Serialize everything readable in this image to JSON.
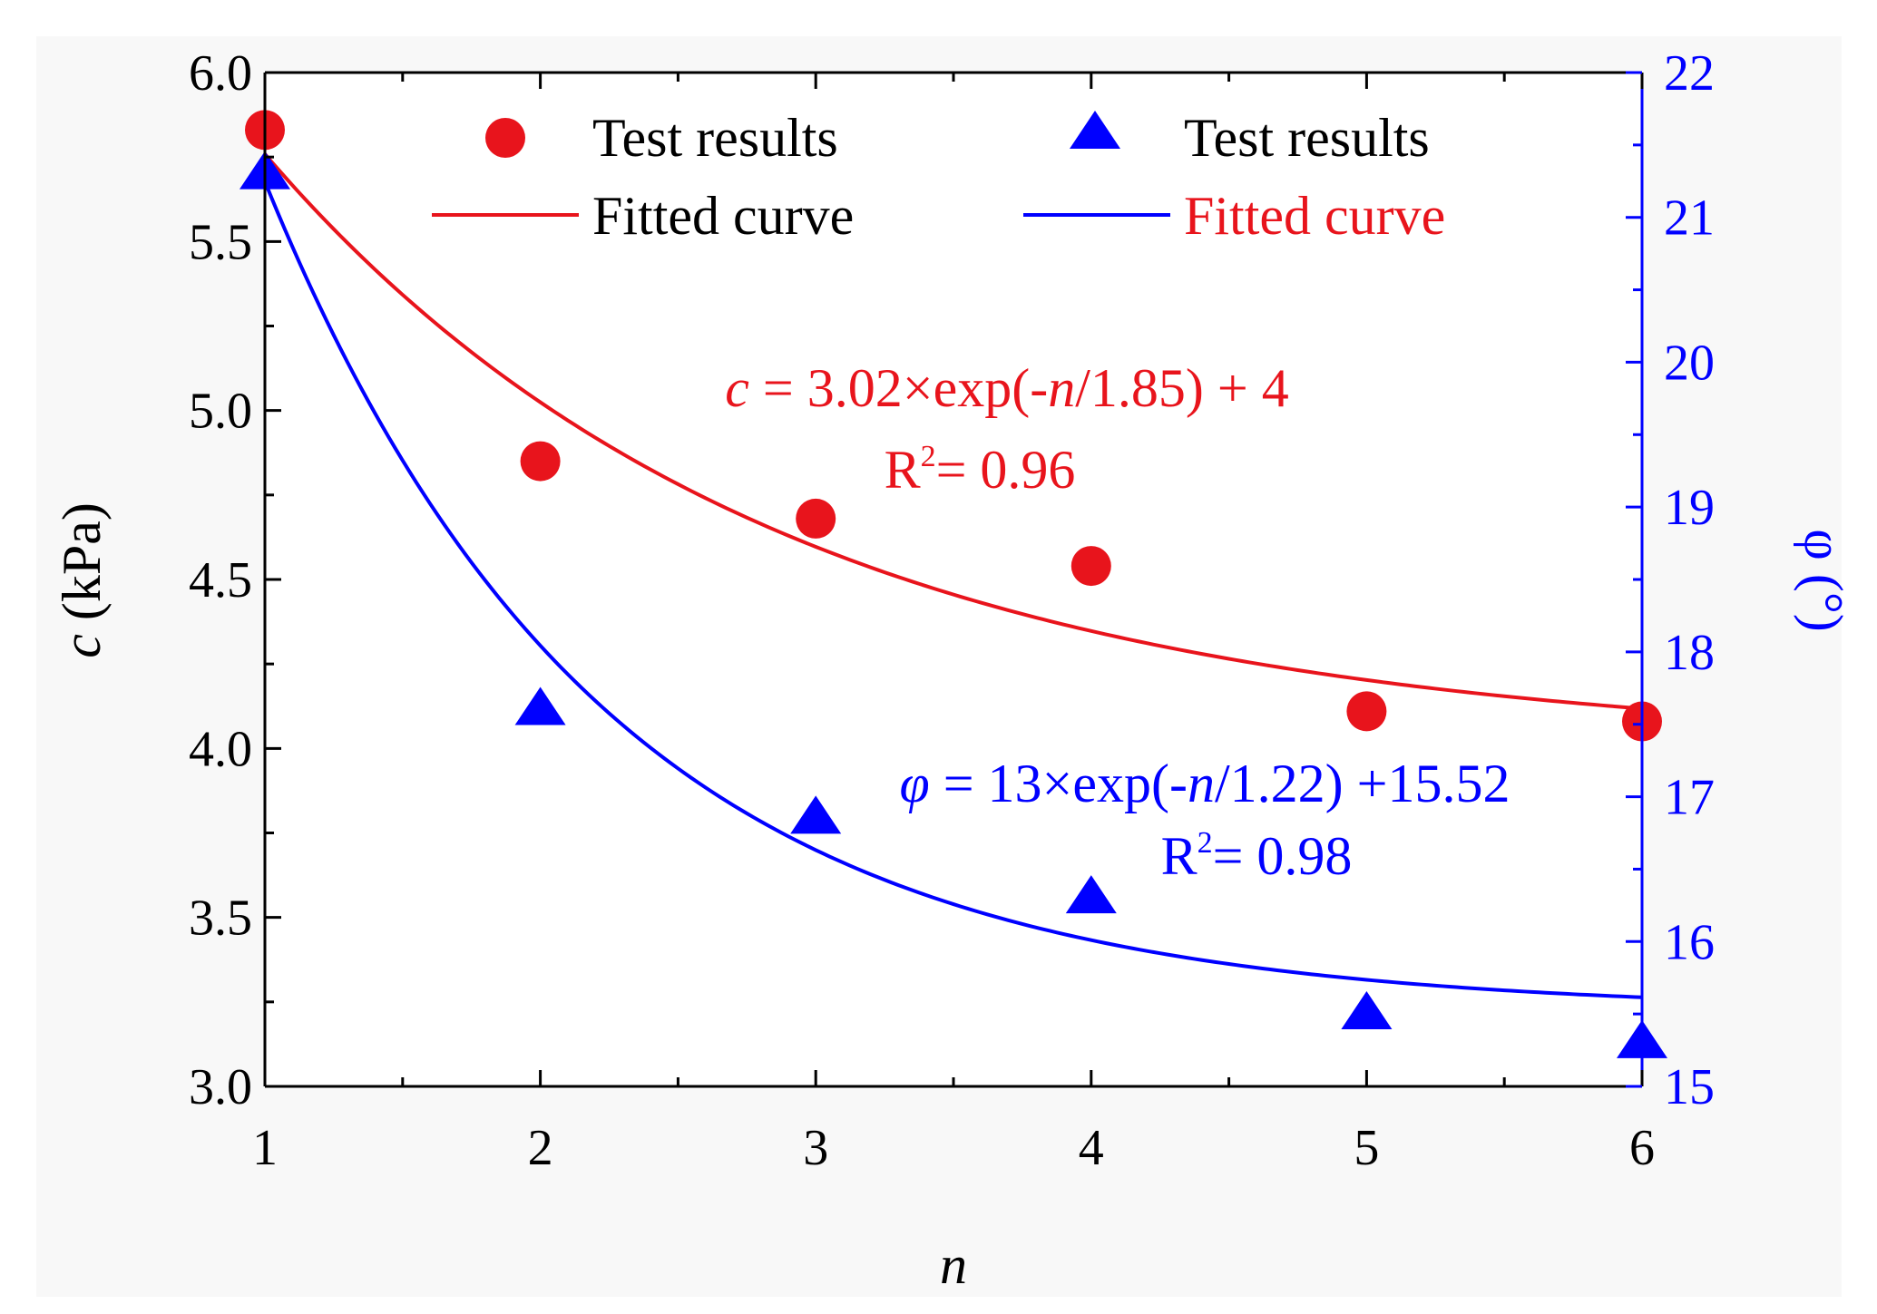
{
  "chart_data": {
    "type": "scatter",
    "x": [
      1,
      2,
      3,
      4,
      5,
      6
    ],
    "xlim": [
      1,
      6
    ],
    "xticks": [
      "1",
      "2",
      "3",
      "4",
      "5",
      "6"
    ],
    "xlabel": "n",
    "ylabel_left": "c (kPa)",
    "ylim_left": [
      3.0,
      6.0
    ],
    "yticks_left": [
      "3.0",
      "3.5",
      "4.0",
      "4.5",
      "5.0",
      "5.5",
      "6.0"
    ],
    "ylabel_right": "φ (°)",
    "ylim_right": [
      15,
      22
    ],
    "yticks_right": [
      "15",
      "16",
      "17",
      "18",
      "19",
      "20",
      "21",
      "22"
    ],
    "series": [
      {
        "name": "Test results",
        "axis": "left",
        "marker": "circle",
        "color": "#e8141c",
        "values": [
          5.83,
          4.85,
          4.68,
          4.54,
          4.11,
          4.08
        ]
      },
      {
        "name": "Fitted curve",
        "axis": "left",
        "kind": "fit",
        "color": "#e8141c",
        "fit": {
          "A": 3.02,
          "t": 1.85,
          "y0": 4
        }
      },
      {
        "name": "Test results",
        "axis": "right",
        "marker": "triangle",
        "color": "#0000ff",
        "values": [
          21.3,
          17.6,
          16.85,
          16.3,
          15.5,
          15.3
        ]
      },
      {
        "name": "Fitted curve",
        "axis": "right",
        "kind": "fit",
        "color": "#0000ff",
        "fit": {
          "A": 13,
          "t": 1.22,
          "y0": 15.52
        }
      }
    ],
    "legend": {
      "placement": "top",
      "c_points": "Test results",
      "c_fit": "Fitted curve",
      "phi_points": "Test results",
      "phi_fit": "Fitted curve"
    },
    "annotations": {
      "c_equation_var": "c",
      "c_equation_mid": " = 3.02×exp(-",
      "c_equation_n": "n",
      "c_equation_end": "/1.85) + 4",
      "c_r2_r": "R",
      "c_r2_sup": "2",
      "c_r2_val": "=  0.96",
      "phi_equation_var": "φ",
      "phi_equation_mid": " = 13×exp(-",
      "phi_equation_n": "n",
      "phi_equation_end": "/1.22) +15.52",
      "phi_r2_r": "R",
      "phi_r2_sup": "2",
      "phi_r2_val": "=  0.98"
    },
    "colors": {
      "red": "#e8141c",
      "blue": "#0000ff",
      "axis": "#000000"
    }
  }
}
